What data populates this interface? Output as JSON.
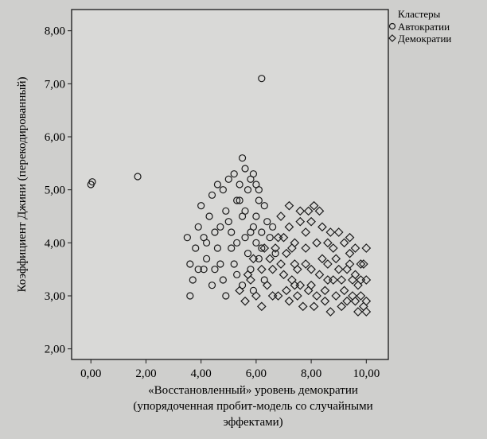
{
  "chart_data": {
    "type": "scatter",
    "xlabel_lines": [
      "«Восстановленный» уровень демократии",
      "(упорядоченная пробит-модель со случайными",
      "эффектами)"
    ],
    "ylabel": "Коэффициент Джини (перекодированный)",
    "xlim": [
      -0.7,
      10.8
    ],
    "ylim": [
      1.8,
      8.4
    ],
    "x_ticks": [
      0,
      2,
      4,
      6,
      8,
      10
    ],
    "x_tick_labels": [
      "0,00",
      "2,00",
      "4,00",
      "6,00",
      "8,00",
      "10,00"
    ],
    "y_ticks": [
      2,
      3,
      4,
      5,
      6,
      7,
      8
    ],
    "y_tick_labels": [
      "2,00",
      "3,00",
      "4,00",
      "5,00",
      "6,00",
      "7,00",
      "8,00"
    ],
    "legend": {
      "title": "Кластеры",
      "placement": "top-right",
      "entries": [
        {
          "label": "Автократии",
          "marker": "circle"
        },
        {
          "label": "Демократии",
          "marker": "diamond"
        }
      ]
    },
    "series": [
      {
        "name": "Автократии",
        "marker": "circle",
        "points": [
          [
            0.0,
            5.1
          ],
          [
            0.05,
            5.15
          ],
          [
            1.7,
            5.25
          ],
          [
            6.2,
            7.1
          ],
          [
            3.6,
            3.0
          ],
          [
            3.7,
            3.3
          ],
          [
            3.6,
            3.6
          ],
          [
            3.8,
            3.9
          ],
          [
            3.5,
            4.1
          ],
          [
            3.9,
            4.3
          ],
          [
            4.1,
            3.5
          ],
          [
            4.2,
            3.7
          ],
          [
            4.0,
            4.7
          ],
          [
            4.3,
            4.5
          ],
          [
            4.5,
            4.2
          ],
          [
            4.6,
            3.9
          ],
          [
            4.7,
            3.6
          ],
          [
            4.8,
            3.3
          ],
          [
            4.5,
            3.5
          ],
          [
            4.9,
            4.6
          ],
          [
            5.0,
            4.4
          ],
          [
            5.1,
            3.9
          ],
          [
            5.2,
            3.6
          ],
          [
            5.3,
            3.4
          ],
          [
            5.4,
            4.8
          ],
          [
            5.5,
            4.5
          ],
          [
            5.6,
            4.1
          ],
          [
            5.7,
            3.8
          ],
          [
            5.8,
            3.5
          ],
          [
            5.9,
            4.3
          ],
          [
            6.0,
            4.0
          ],
          [
            6.1,
            3.7
          ],
          [
            6.2,
            3.9
          ],
          [
            6.3,
            3.3
          ],
          [
            5.2,
            5.3
          ],
          [
            5.4,
            5.1
          ],
          [
            5.6,
            5.4
          ],
          [
            5.8,
            5.2
          ],
          [
            5.5,
            5.6
          ],
          [
            5.7,
            5.0
          ],
          [
            5.9,
            5.3
          ],
          [
            6.0,
            5.1
          ],
          [
            6.1,
            4.8
          ],
          [
            6.3,
            4.7
          ],
          [
            6.4,
            4.4
          ],
          [
            6.5,
            4.1
          ],
          [
            4.4,
            4.9
          ],
          [
            4.6,
            5.1
          ],
          [
            4.8,
            5.0
          ],
          [
            4.2,
            4.0
          ],
          [
            4.4,
            3.2
          ],
          [
            4.9,
            3.0
          ],
          [
            5.1,
            4.2
          ],
          [
            5.3,
            4.0
          ],
          [
            5.6,
            4.6
          ],
          [
            5.8,
            4.2
          ],
          [
            6.0,
            4.5
          ],
          [
            6.2,
            4.2
          ],
          [
            6.6,
            4.3
          ],
          [
            6.7,
            3.8
          ],
          [
            5.0,
            5.2
          ],
          [
            5.3,
            4.8
          ],
          [
            4.7,
            4.3
          ],
          [
            5.5,
            3.2
          ],
          [
            5.9,
            3.1
          ],
          [
            6.1,
            5.0
          ],
          [
            3.9,
            3.5
          ],
          [
            4.1,
            4.1
          ]
        ]
      },
      {
        "name": "Демократии",
        "marker": "diamond",
        "points": [
          [
            5.4,
            3.1
          ],
          [
            5.6,
            2.9
          ],
          [
            5.8,
            3.3
          ],
          [
            6.0,
            3.0
          ],
          [
            6.2,
            2.8
          ],
          [
            6.4,
            3.2
          ],
          [
            6.6,
            3.5
          ],
          [
            6.8,
            3.0
          ],
          [
            7.0,
            3.4
          ],
          [
            7.2,
            2.9
          ],
          [
            7.4,
            3.6
          ],
          [
            7.6,
            3.2
          ],
          [
            7.8,
            3.9
          ],
          [
            8.0,
            3.5
          ],
          [
            8.2,
            3.0
          ],
          [
            8.4,
            3.7
          ],
          [
            8.6,
            3.3
          ],
          [
            8.8,
            3.9
          ],
          [
            9.0,
            3.5
          ],
          [
            9.2,
            3.1
          ],
          [
            9.4,
            3.8
          ],
          [
            9.6,
            3.4
          ],
          [
            9.8,
            3.0
          ],
          [
            10.0,
            3.3
          ],
          [
            9.9,
            2.8
          ],
          [
            9.7,
            2.7
          ],
          [
            9.5,
            3.0
          ],
          [
            9.3,
            2.9
          ],
          [
            9.1,
            3.3
          ],
          [
            8.9,
            3.0
          ],
          [
            8.7,
            2.7
          ],
          [
            8.5,
            3.1
          ],
          [
            8.3,
            3.4
          ],
          [
            8.1,
            2.8
          ],
          [
            7.9,
            3.1
          ],
          [
            7.7,
            2.8
          ],
          [
            7.5,
            3.0
          ],
          [
            7.3,
            3.3
          ],
          [
            7.1,
            3.1
          ],
          [
            6.9,
            3.6
          ],
          [
            6.7,
            3.9
          ],
          [
            6.5,
            3.7
          ],
          [
            6.3,
            3.9
          ],
          [
            7.0,
            4.1
          ],
          [
            7.2,
            4.3
          ],
          [
            7.4,
            4.0
          ],
          [
            7.6,
            4.4
          ],
          [
            7.8,
            4.2
          ],
          [
            8.0,
            4.4
          ],
          [
            8.2,
            4.0
          ],
          [
            8.4,
            4.3
          ],
          [
            8.6,
            4.0
          ],
          [
            7.2,
            4.7
          ],
          [
            7.6,
            4.6
          ],
          [
            8.1,
            4.7
          ],
          [
            8.3,
            4.6
          ],
          [
            6.9,
            4.5
          ],
          [
            9.0,
            4.2
          ],
          [
            9.2,
            4.0
          ],
          [
            9.4,
            3.6
          ],
          [
            9.6,
            3.9
          ],
          [
            9.8,
            3.6
          ],
          [
            10.0,
            3.9
          ],
          [
            10.0,
            2.9
          ],
          [
            9.9,
            3.6
          ],
          [
            9.5,
            3.3
          ],
          [
            9.3,
            3.5
          ],
          [
            8.8,
            3.3
          ],
          [
            8.6,
            3.6
          ],
          [
            8.0,
            3.2
          ],
          [
            7.8,
            3.6
          ],
          [
            7.4,
            3.2
          ],
          [
            6.6,
            3.0
          ],
          [
            6.2,
            3.5
          ],
          [
            5.9,
            3.7
          ],
          [
            5.7,
            3.4
          ],
          [
            7.5,
            3.5
          ],
          [
            8.5,
            2.9
          ],
          [
            9.1,
            2.8
          ],
          [
            9.6,
            2.9
          ],
          [
            10.0,
            2.7
          ],
          [
            9.8,
            3.3
          ],
          [
            8.7,
            4.2
          ],
          [
            8.9,
            3.7
          ],
          [
            7.9,
            4.6
          ],
          [
            7.1,
            3.8
          ],
          [
            7.3,
            3.9
          ],
          [
            6.8,
            4.1
          ],
          [
            9.4,
            4.1
          ],
          [
            9.7,
            3.2
          ]
        ]
      }
    ]
  }
}
